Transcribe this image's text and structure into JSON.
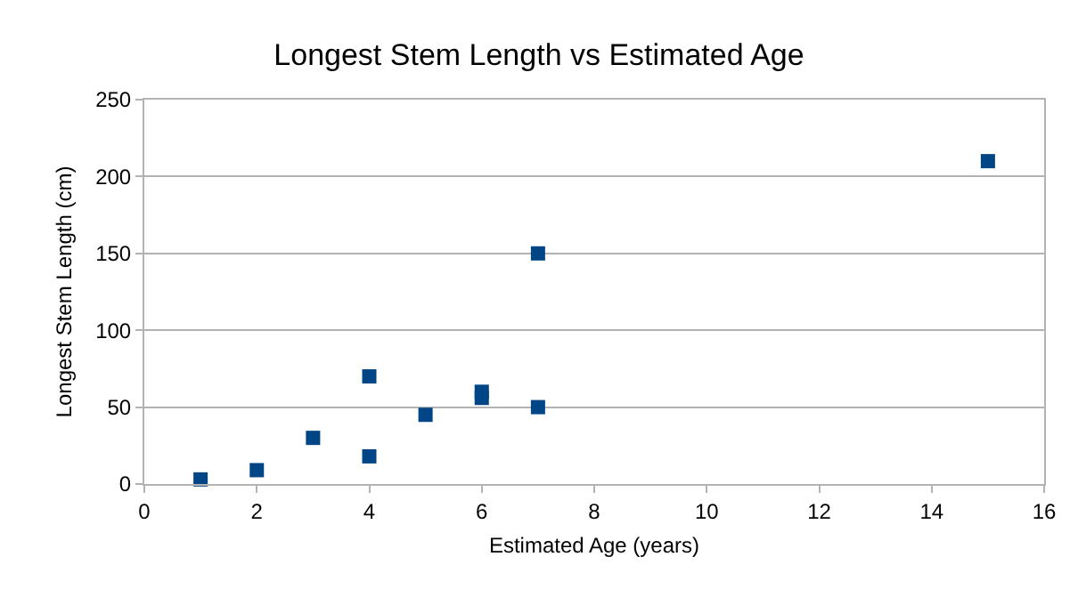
{
  "chart_data": {
    "type": "scatter",
    "title": "Longest Stem Length vs Estimated Age",
    "xlabel": "Estimated Age (years)",
    "ylabel": "Longest Stem Length (cm)",
    "x": [
      1,
      2,
      3,
      4,
      4,
      5,
      6,
      6,
      7,
      7,
      15
    ],
    "values": [
      3,
      9,
      30,
      70,
      18,
      45,
      60,
      56,
      150,
      50,
      210
    ],
    "color": "#004586",
    "xlim": [
      0,
      16
    ],
    "xticks": [
      0,
      2,
      4,
      6,
      8,
      10,
      12,
      14,
      16
    ],
    "ylim": [
      0,
      250
    ],
    "yticks": [
      0,
      50,
      100,
      150,
      200,
      250
    ],
    "grid": "y",
    "legend": false,
    "marker": "square"
  }
}
